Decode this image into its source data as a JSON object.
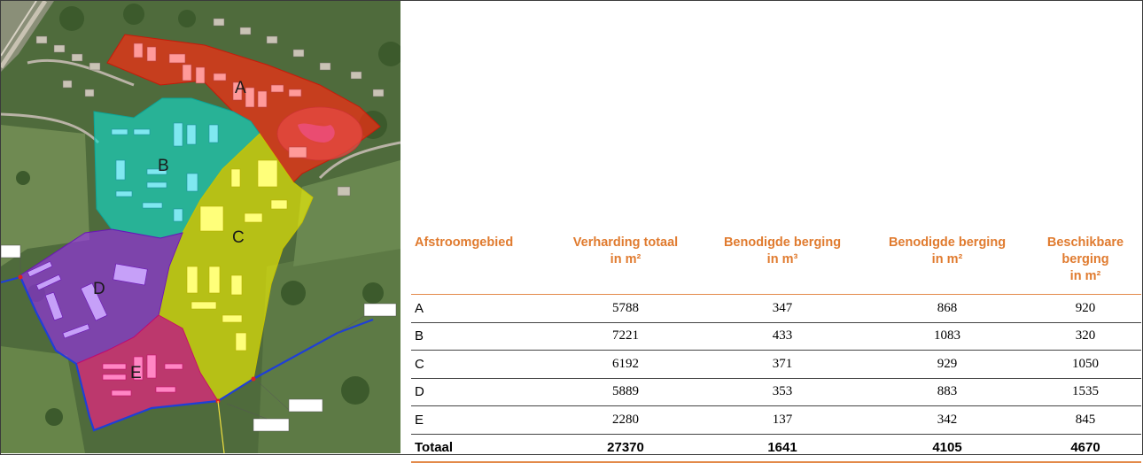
{
  "map": {
    "zones": [
      {
        "id": "A",
        "label": "A",
        "color": "#ff2a10"
      },
      {
        "id": "B",
        "label": "B",
        "color": "#10dfcf"
      },
      {
        "id": "C",
        "label": "C",
        "color": "#f5f500"
      },
      {
        "id": "D",
        "label": "D",
        "color": "#9a2df0"
      },
      {
        "id": "E",
        "label": "E",
        "color": "#ff1a8c"
      }
    ],
    "base_colors": {
      "vegetation": "#4f6b3c",
      "field": "#6f8a52",
      "road": "#b9b3a6"
    },
    "drainage_color": "#1f3fd6"
  },
  "table": {
    "headers": [
      "Afstroomgebied",
      "Verharding totaal in m²",
      "Benodigde berging in m³",
      "Benodigde berging in m²",
      "Beschikbare berging in m²"
    ],
    "rows": [
      [
        "A",
        "5788",
        "347",
        "868",
        "920"
      ],
      [
        "B",
        "7221",
        "433",
        "1083",
        "320"
      ],
      [
        "C",
        "6192",
        "371",
        "929",
        "1050"
      ],
      [
        "D",
        "5889",
        "353",
        "883",
        "1535"
      ],
      [
        "E",
        "2280",
        "137",
        "342",
        "845"
      ]
    ],
    "total": [
      "Totaal",
      "27370",
      "1641",
      "4105",
      "4670"
    ],
    "header_color": "#e07b2f"
  }
}
